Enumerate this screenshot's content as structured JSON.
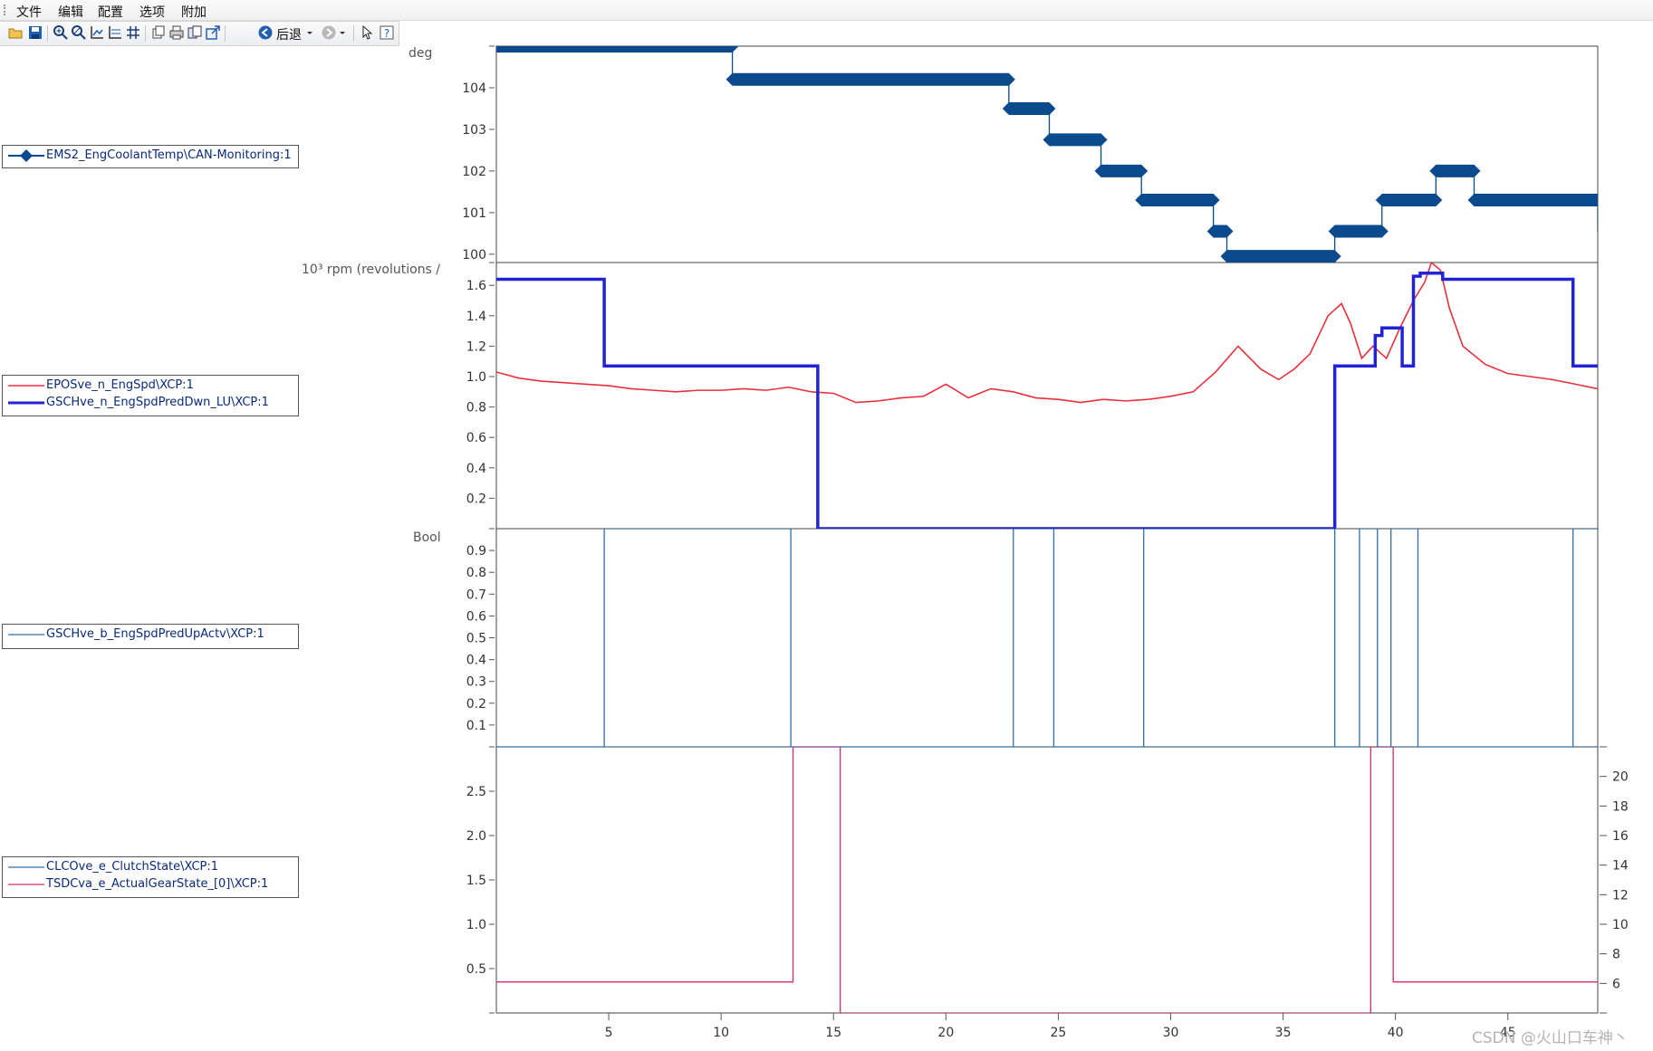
{
  "menu": {
    "items": [
      "文件",
      "编辑",
      "配置",
      "选项",
      "附加"
    ]
  },
  "toolbar": {
    "back_label": "后退",
    "icons": [
      "open-icon",
      "save-icon",
      "zoom-in-icon",
      "zoom-out-icon",
      "axis-x-icon",
      "axis-y-icon",
      "grid-icon",
      "copy-icon",
      "print-icon",
      "duplicate-icon",
      "export-icon",
      "back-icon",
      "dropdown-icon",
      "forward-icon",
      "dropdown-icon",
      "pointer-icon",
      "help-icon"
    ]
  },
  "legends": {
    "coolant": {
      "label": "EMS2_EngCoolantTemp\\CAN-Monitoring:1",
      "color": "#0b4a8c"
    },
    "speed": [
      {
        "label": "EPOSve_n_EngSpd\\XCP:1",
        "color": "#e8303c"
      },
      {
        "label": "GSCHve_n_EngSpdPredDwn_LU\\XCP:1",
        "color": "#2323d6"
      }
    ],
    "pred": {
      "label": "GSCHve_b_EngSpdPredUpActv\\XCP:1",
      "color": "#2f6fa6"
    },
    "clutch": [
      {
        "label": "CLCOve_e_ClutchState\\XCP:1",
        "color": "#2f6fa6"
      },
      {
        "label": "TSDCva_e_ActualGearState_[0]\\XCP:1",
        "color": "#d62e66"
      }
    ]
  },
  "units": {
    "coolant": "deg",
    "speed": "10³ rpm (revolutions /",
    "bool": "Bool"
  },
  "watermark": "CSDN @火山口车神丶",
  "chart_data": [
    {
      "type": "line",
      "ylim": [
        99.8,
        105
      ],
      "yticks": [
        "100",
        "101",
        "102",
        "103",
        "104"
      ],
      "grid": false,
      "series": [
        {
          "name": "EMS2_EngCoolantTemp\\CAN-Monitoring:1",
          "color": "#0b4a8c",
          "step": true,
          "markers": true,
          "x": [
            0,
            10.5,
            22.8,
            24.6,
            26.9,
            28.7,
            31.9,
            32.5,
            37.3,
            39.4,
            41.8,
            43.5,
            49.0
          ],
          "y": [
            105,
            104.2,
            103.5,
            102.75,
            102.0,
            101.3,
            100.55,
            99.95,
            100.55,
            101.3,
            102.0,
            101.3,
            100.55
          ]
        }
      ]
    },
    {
      "type": "line",
      "ylim": [
        0,
        1.75
      ],
      "yticks": [
        "0.2",
        "0.4",
        "0.6",
        "0.8",
        "1.0",
        "1.2",
        "1.4",
        "1.6"
      ],
      "grid": false,
      "series": [
        {
          "name": "EPOSve_n_EngSpd\\XCP:1",
          "color": "#e8303c",
          "step": false,
          "x": [
            0,
            1,
            2,
            3,
            4,
            5,
            6,
            7,
            8,
            9,
            10,
            11,
            12,
            13,
            14,
            15,
            16,
            17,
            18,
            19,
            20,
            21,
            22,
            23,
            24,
            25,
            26,
            27,
            28,
            29,
            30,
            31,
            32,
            33,
            34,
            34.8,
            35.5,
            36.2,
            37,
            37.6,
            38,
            38.5,
            39,
            39.6,
            40.2,
            40.8,
            41.3,
            41.6,
            42,
            42.4,
            43,
            44,
            45,
            46,
            47,
            48,
            49
          ],
          "y": [
            1.03,
            0.99,
            0.97,
            0.96,
            0.95,
            0.94,
            0.92,
            0.91,
            0.9,
            0.91,
            0.91,
            0.92,
            0.91,
            0.93,
            0.9,
            0.89,
            0.83,
            0.84,
            0.86,
            0.87,
            0.95,
            0.86,
            0.92,
            0.9,
            0.86,
            0.85,
            0.83,
            0.85,
            0.84,
            0.85,
            0.87,
            0.9,
            1.03,
            1.2,
            1.05,
            0.98,
            1.05,
            1.15,
            1.4,
            1.48,
            1.35,
            1.12,
            1.2,
            1.12,
            1.32,
            1.5,
            1.62,
            1.75,
            1.7,
            1.45,
            1.2,
            1.08,
            1.02,
            1.0,
            0.98,
            0.95,
            0.92
          ]
        },
        {
          "name": "GSCHve_n_EngSpdPredDwn_LU\\XCP:1",
          "color": "#2323d6",
          "step": true,
          "x": [
            0,
            4.8,
            14.3,
            37.3,
            39.1,
            39.4,
            40.3,
            40.8,
            41.1,
            42.1,
            47.9,
            49
          ],
          "y": [
            1.64,
            1.07,
            0.0,
            1.07,
            1.27,
            1.32,
            1.07,
            1.66,
            1.68,
            1.64,
            1.07,
            1.07
          ]
        }
      ]
    },
    {
      "type": "line",
      "ylim": [
        0,
        1
      ],
      "yticks": [
        "0.1",
        "0.2",
        "0.3",
        "0.4",
        "0.5",
        "0.6",
        "0.7",
        "0.8",
        "0.9"
      ],
      "grid": false,
      "series": [
        {
          "name": "GSCHve_b_EngSpdPredUpActv\\XCP:1",
          "color": "#2f6fa6",
          "step": true,
          "x": [
            0,
            4.8,
            13.1,
            23.0,
            24.8,
            28.8,
            37.3,
            38.4,
            39.2,
            39.8,
            41.0,
            47.9,
            49
          ],
          "y": [
            0,
            1,
            0,
            1,
            0,
            1,
            0,
            1,
            0,
            1,
            0,
            1,
            1
          ]
        }
      ]
    },
    {
      "type": "line",
      "ylim": [
        0,
        3
      ],
      "yticks": [
        "0.5",
        "1.0",
        "1.5",
        "2.0",
        "2.5"
      ],
      "y2ticks": [
        "6",
        "8",
        "10",
        "12",
        "14",
        "16",
        "18",
        "20"
      ],
      "y2lim": [
        4,
        22
      ],
      "grid": false,
      "series": [
        {
          "name": "CLCOve_e_ClutchState\\XCP:1",
          "color": "#2f6fa6",
          "step": true,
          "x": [
            0,
            49
          ],
          "y": [
            3,
            3
          ]
        },
        {
          "name": "TSDCva_e_ActualGearState_[0]\\XCP:1",
          "color": "#d62e66",
          "step": true,
          "x": [
            0,
            13.2,
            15.3,
            38.9,
            39.9,
            49
          ],
          "y": [
            0.35,
            3.0,
            0.0,
            3.0,
            0.35,
            0.35
          ]
        }
      ]
    }
  ],
  "x_axis": {
    "xlim": [
      0,
      49
    ],
    "ticks": [
      "5",
      "10",
      "15",
      "20",
      "25",
      "30",
      "35",
      "40",
      "45"
    ]
  }
}
